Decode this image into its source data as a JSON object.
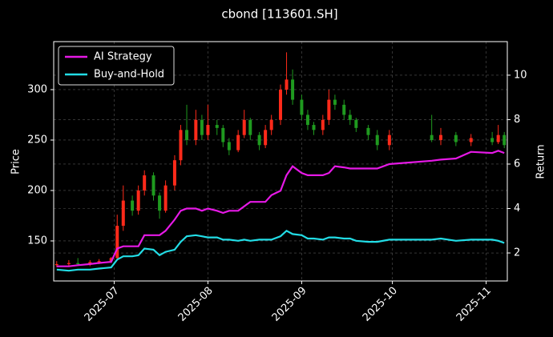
{
  "chart_data": {
    "type": "candlestick",
    "title": "cbond [113601.SH]",
    "y_label": "Price",
    "y2_label": "Return",
    "x": [
      "2025-06-12",
      "2025-06-16",
      "2025-06-19",
      "2025-06-23",
      "2025-06-26",
      "2025-06-30",
      "2025-07-02",
      "2025-07-04",
      "2025-07-07",
      "2025-07-09",
      "2025-07-11",
      "2025-07-14",
      "2025-07-16",
      "2025-07-18",
      "2025-07-21",
      "2025-07-23",
      "2025-07-25",
      "2025-07-28",
      "2025-07-30",
      "2025-08-01",
      "2025-08-04",
      "2025-08-06",
      "2025-08-08",
      "2025-08-11",
      "2025-08-13",
      "2025-08-15",
      "2025-08-18",
      "2025-08-20",
      "2025-08-22",
      "2025-08-25",
      "2025-08-27",
      "2025-08-29",
      "2025-09-01",
      "2025-09-03",
      "2025-09-05",
      "2025-09-08",
      "2025-09-10",
      "2025-09-12",
      "2025-09-15",
      "2025-09-17",
      "2025-09-19",
      "2025-09-23",
      "2025-09-26",
      "2025-09-30",
      "2025-10-14",
      "2025-10-17",
      "2025-10-22",
      "2025-10-27",
      "2025-11-03",
      "2025-11-05",
      "2025-11-07"
    ],
    "open": [
      126,
      127,
      128,
      127,
      129,
      130,
      133,
      165,
      190,
      180,
      200,
      215,
      195,
      180,
      205,
      230,
      260,
      250,
      270,
      255,
      265,
      262,
      248,
      240,
      255,
      270,
      255,
      245,
      260,
      270,
      300,
      310,
      290,
      275,
      265,
      260,
      270,
      290,
      285,
      275,
      270,
      262,
      255,
      245,
      255,
      250,
      255,
      248,
      252,
      248,
      255
    ],
    "high": [
      130,
      131,
      133,
      131,
      132,
      134,
      176,
      205,
      195,
      205,
      220,
      218,
      198,
      210,
      235,
      265,
      285,
      280,
      275,
      285,
      270,
      265,
      252,
      260,
      280,
      272,
      258,
      265,
      275,
      305,
      337,
      320,
      295,
      280,
      268,
      275,
      300,
      295,
      290,
      280,
      272,
      265,
      260,
      260,
      275,
      262,
      258,
      256,
      258,
      265,
      258
    ],
    "low": [
      124,
      125,
      126,
      125,
      127,
      128,
      131,
      160,
      175,
      176,
      195,
      190,
      172,
      178,
      200,
      225,
      245,
      245,
      250,
      250,
      255,
      243,
      235,
      238,
      252,
      250,
      240,
      242,
      255,
      265,
      295,
      285,
      270,
      260,
      255,
      255,
      265,
      280,
      270,
      265,
      258,
      250,
      240,
      240,
      248,
      245,
      244,
      244,
      245,
      246,
      242
    ],
    "close": [
      127,
      128,
      127,
      129,
      130,
      133,
      165,
      190,
      180,
      200,
      215,
      195,
      180,
      205,
      230,
      260,
      250,
      270,
      255,
      265,
      262,
      248,
      240,
      255,
      270,
      255,
      245,
      260,
      270,
      300,
      310,
      290,
      275,
      265,
      260,
      270,
      290,
      285,
      275,
      270,
      262,
      255,
      245,
      255,
      250,
      255,
      248,
      252,
      248,
      255,
      245
    ],
    "up_color": "#ff2a1a",
    "down_color": "#1f9a1f",
    "series": [
      {
        "name": "AI Strategy",
        "color": "#e619e6",
        "axis": "y2",
        "values": [
          1.4,
          1.4,
          1.45,
          1.5,
          1.55,
          1.6,
          2.2,
          2.3,
          2.3,
          2.3,
          2.8,
          2.8,
          2.8,
          3.0,
          3.5,
          3.9,
          4.0,
          4.0,
          3.9,
          4.0,
          3.9,
          3.8,
          3.9,
          3.9,
          4.1,
          4.3,
          4.3,
          4.3,
          4.6,
          4.8,
          5.5,
          5.9,
          5.6,
          5.5,
          5.5,
          5.5,
          5.6,
          5.9,
          5.85,
          5.8,
          5.8,
          5.8,
          5.8,
          6.0,
          6.15,
          6.2,
          6.25,
          6.55,
          6.5,
          6.6,
          6.5
        ]
      },
      {
        "name": "Buy-and-Hold",
        "color": "#22dde6",
        "axis": "y2",
        "values": [
          1.25,
          1.2,
          1.25,
          1.25,
          1.3,
          1.35,
          1.7,
          1.85,
          1.85,
          1.9,
          2.2,
          2.15,
          1.9,
          2.05,
          2.15,
          2.5,
          2.75,
          2.8,
          2.75,
          2.7,
          2.7,
          2.6,
          2.6,
          2.55,
          2.6,
          2.55,
          2.6,
          2.6,
          2.6,
          2.75,
          3.0,
          2.85,
          2.8,
          2.65,
          2.65,
          2.6,
          2.7,
          2.7,
          2.65,
          2.65,
          2.55,
          2.5,
          2.5,
          2.6,
          2.6,
          2.65,
          2.55,
          2.6,
          2.6,
          2.55,
          2.45
        ]
      }
    ],
    "xlim": [
      "2025-06-11",
      "2025-11-08"
    ],
    "xticks": [
      {
        "value": "2025-07-01",
        "label": "2025-07"
      },
      {
        "value": "2025-08-01",
        "label": "2025-08"
      },
      {
        "value": "2025-09-01",
        "label": "2025-09"
      },
      {
        "value": "2025-10-01",
        "label": "2025-10"
      },
      {
        "value": "2025-11-01",
        "label": "2025-11"
      }
    ],
    "ylim": [
      110.3,
      347.6
    ],
    "yticks": [
      150,
      200,
      250,
      300
    ],
    "y2lim": [
      0.74,
      11.51
    ],
    "y2ticks": [
      2,
      4,
      6,
      8,
      10
    ],
    "grid": true,
    "legend": "upper-left"
  }
}
